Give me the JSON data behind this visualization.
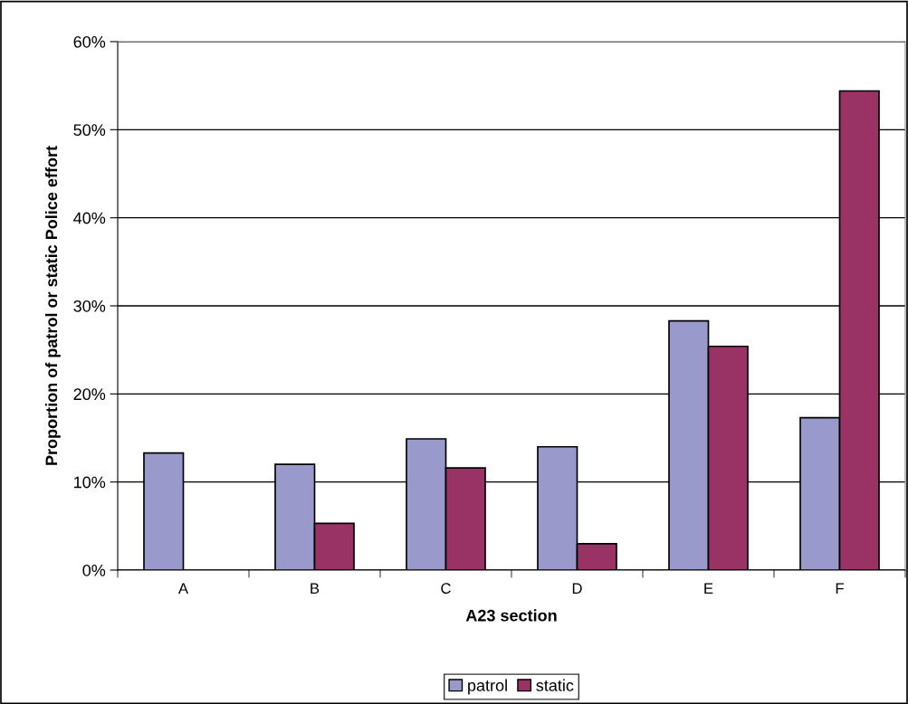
{
  "chart_data": {
    "type": "bar",
    "xlabel": "A23 section",
    "ylabel": "Proportion of patrol or static Police effort",
    "categories": [
      "A",
      "B",
      "C",
      "D",
      "E",
      "F"
    ],
    "series": [
      {
        "name": "patrol",
        "color": "#9999cc",
        "values": [
          13.3,
          12.0,
          14.9,
          14.0,
          28.3,
          17.3
        ]
      },
      {
        "name": "static",
        "color": "#993366",
        "values": [
          null,
          5.3,
          11.6,
          3.0,
          25.4,
          54.4
        ]
      }
    ],
    "ylim": [
      0,
      60
    ],
    "yticks": [
      {
        "value": 0,
        "label": "0%"
      },
      {
        "value": 10,
        "label": "10%"
      },
      {
        "value": 20,
        "label": "20%"
      },
      {
        "value": 30,
        "label": "30%"
      },
      {
        "value": 40,
        "label": "40%"
      },
      {
        "value": 50,
        "label": "50%"
      },
      {
        "value": 60,
        "label": "60%"
      }
    ],
    "grid": "y",
    "legend": "bottom"
  }
}
